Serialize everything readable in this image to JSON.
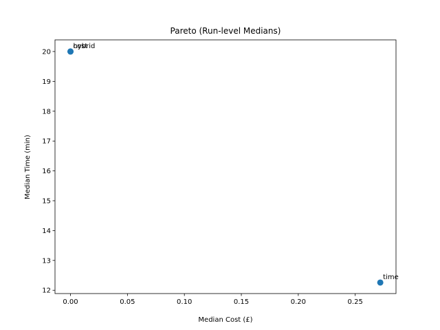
{
  "chart_data": {
    "type": "scatter",
    "title": "Pareto (Run-level Medians)",
    "xlabel": "Median Cost (£)",
    "ylabel": "Median Time (min)",
    "xlim": [
      -0.0136,
      0.2858
    ],
    "ylim": [
      11.89,
      20.39
    ],
    "xticks": [
      0.0,
      0.05,
      0.1,
      0.15,
      0.2,
      0.25
    ],
    "xtick_labels": [
      "0.00",
      "0.05",
      "0.10",
      "0.15",
      "0.20",
      "0.25"
    ],
    "yticks": [
      12,
      13,
      14,
      15,
      16,
      17,
      18,
      19,
      20
    ],
    "ytick_labels": [
      "12",
      "13",
      "14",
      "15",
      "16",
      "17",
      "18",
      "19",
      "20"
    ],
    "grid": false,
    "marker_color": "#1f77b4",
    "points": [
      {
        "label": "cost",
        "x": 0.0,
        "y": 20.0
      },
      {
        "label": "hybrid",
        "x": 0.0,
        "y": 20.0
      },
      {
        "label": "time",
        "x": 0.272,
        "y": 12.26
      }
    ]
  }
}
